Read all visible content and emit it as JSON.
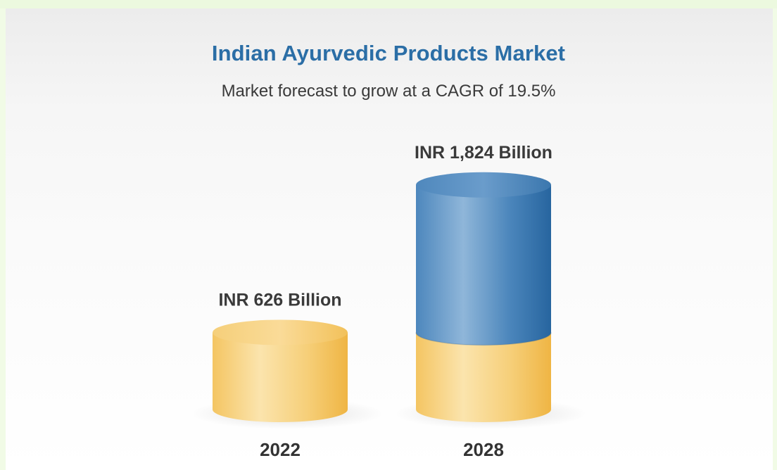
{
  "chart_data": {
    "type": "bar",
    "style": "3d-cylinder",
    "title": "Indian Ayurvedic Products Market",
    "subtitle": "Market forecast to grow at a CAGR of 19.5%",
    "categories": [
      "2022",
      "2028"
    ],
    "values": [
      626,
      1824
    ],
    "value_labels": [
      "INR 626 Billion",
      "INR 1,824 Billion"
    ],
    "unit": "INR Billion",
    "grid": false,
    "legend": "none"
  },
  "colors": {
    "title": "#2b6ea6",
    "base_segment": "#f2c560",
    "growth_segment": "#3f7db5"
  }
}
